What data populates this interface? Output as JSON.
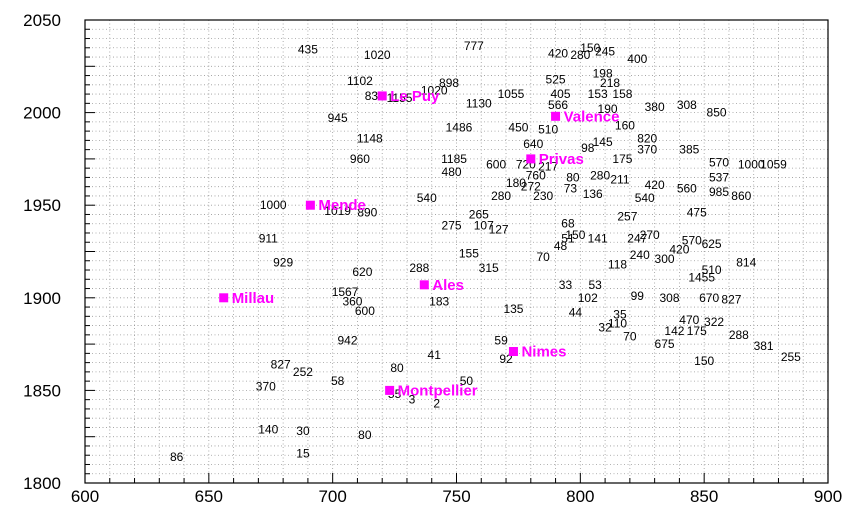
{
  "chart_data": {
    "type": "scatter",
    "title": "",
    "xlabel": "",
    "ylabel": "",
    "xlim": [
      600,
      900
    ],
    "ylim": [
      1800,
      2050
    ],
    "x_ticks": [
      600,
      650,
      700,
      750,
      800,
      850,
      900
    ],
    "y_ticks": [
      1800,
      1850,
      1900,
      1950,
      2000,
      2050
    ],
    "grid": true,
    "marker_color": "#ff00ff",
    "cities": [
      {
        "name": "Le Puy",
        "x": 720,
        "y": 2009
      },
      {
        "name": "Valence",
        "x": 790,
        "y": 1998
      },
      {
        "name": "Privas",
        "x": 780,
        "y": 1975
      },
      {
        "name": "Mende",
        "x": 691,
        "y": 1950
      },
      {
        "name": "Ales",
        "x": 737,
        "y": 1907
      },
      {
        "name": "Millau",
        "x": 656,
        "y": 1900
      },
      {
        "name": "Nimes",
        "x": 773,
        "y": 1871
      },
      {
        "name": "Montpellier",
        "x": 723,
        "y": 1850
      }
    ],
    "points": [
      {
        "label": "435",
        "x": 690,
        "y": 2034
      },
      {
        "label": "1020",
        "x": 718,
        "y": 2031
      },
      {
        "label": "777",
        "x": 757,
        "y": 2036
      },
      {
        "label": "420",
        "x": 791,
        "y": 2032
      },
      {
        "label": "150",
        "x": 804,
        "y": 2035
      },
      {
        "label": "280",
        "x": 800,
        "y": 2031
      },
      {
        "label": "245",
        "x": 810,
        "y": 2033
      },
      {
        "label": "400",
        "x": 823,
        "y": 2029
      },
      {
        "label": "198",
        "x": 809,
        "y": 2021
      },
      {
        "label": "525",
        "x": 790,
        "y": 2018
      },
      {
        "label": "218",
        "x": 812,
        "y": 2016
      },
      {
        "label": "1102",
        "x": 711,
        "y": 2017
      },
      {
        "label": "898",
        "x": 747,
        "y": 2016
      },
      {
        "label": "1020",
        "x": 741,
        "y": 2012
      },
      {
        "label": "835",
        "x": 717,
        "y": 2009
      },
      {
        "label": "1155",
        "x": 727,
        "y": 2008
      },
      {
        "label": "1055",
        "x": 772,
        "y": 2010
      },
      {
        "label": "405",
        "x": 792,
        "y": 2010
      },
      {
        "label": "153",
        "x": 807,
        "y": 2010
      },
      {
        "label": "158",
        "x": 817,
        "y": 2010
      },
      {
        "label": "1130",
        "x": 759,
        "y": 2005
      },
      {
        "label": "566",
        "x": 791,
        "y": 2004
      },
      {
        "label": "190",
        "x": 811,
        "y": 2002
      },
      {
        "label": "380",
        "x": 830,
        "y": 2003
      },
      {
        "label": "308",
        "x": 843,
        "y": 2004
      },
      {
        "label": "850",
        "x": 855,
        "y": 2000
      },
      {
        "label": "945",
        "x": 702,
        "y": 1997
      },
      {
        "label": "1486",
        "x": 751,
        "y": 1992
      },
      {
        "label": "450",
        "x": 775,
        "y": 1992
      },
      {
        "label": "510",
        "x": 787,
        "y": 1991
      },
      {
        "label": "160",
        "x": 818,
        "y": 1993
      },
      {
        "label": "820",
        "x": 827,
        "y": 1986
      },
      {
        "label": "1148",
        "x": 715,
        "y": 1986
      },
      {
        "label": "640",
        "x": 781,
        "y": 1983
      },
      {
        "label": "145",
        "x": 809,
        "y": 1984
      },
      {
        "label": "98",
        "x": 803,
        "y": 1981
      },
      {
        "label": "370",
        "x": 827,
        "y": 1980
      },
      {
        "label": "385",
        "x": 844,
        "y": 1980
      },
      {
        "label": "960",
        "x": 711,
        "y": 1975
      },
      {
        "label": "1185",
        "x": 749,
        "y": 1975
      },
      {
        "label": "600",
        "x": 766,
        "y": 1972
      },
      {
        "label": "720",
        "x": 778,
        "y": 1972
      },
      {
        "label": "217",
        "x": 787,
        "y": 1971
      },
      {
        "label": "175",
        "x": 817,
        "y": 1975
      },
      {
        "label": "570",
        "x": 856,
        "y": 1973
      },
      {
        "label": "1000",
        "x": 869,
        "y": 1972
      },
      {
        "label": "1059",
        "x": 878,
        "y": 1972
      },
      {
        "label": "480",
        "x": 748,
        "y": 1968
      },
      {
        "label": "760",
        "x": 782,
        "y": 1966
      },
      {
        "label": "80",
        "x": 797,
        "y": 1965
      },
      {
        "label": "280",
        "x": 808,
        "y": 1966
      },
      {
        "label": "211",
        "x": 816,
        "y": 1964
      },
      {
        "label": "537",
        "x": 856,
        "y": 1965
      },
      {
        "label": "180",
        "x": 774,
        "y": 1962
      },
      {
        "label": "272",
        "x": 780,
        "y": 1960
      },
      {
        "label": "73",
        "x": 796,
        "y": 1959
      },
      {
        "label": "420",
        "x": 830,
        "y": 1961
      },
      {
        "label": "560",
        "x": 843,
        "y": 1959
      },
      {
        "label": "280",
        "x": 768,
        "y": 1955
      },
      {
        "label": "230",
        "x": 785,
        "y": 1955
      },
      {
        "label": "136",
        "x": 805,
        "y": 1956
      },
      {
        "label": "985",
        "x": 856,
        "y": 1957
      },
      {
        "label": "860",
        "x": 865,
        "y": 1955
      },
      {
        "label": "540",
        "x": 738,
        "y": 1954
      },
      {
        "label": "540",
        "x": 826,
        "y": 1954
      },
      {
        "label": "1000",
        "x": 676,
        "y": 1950
      },
      {
        "label": "1019",
        "x": 702,
        "y": 1947
      },
      {
        "label": "890",
        "x": 714,
        "y": 1946
      },
      {
        "label": "475",
        "x": 847,
        "y": 1946
      },
      {
        "label": "265",
        "x": 759,
        "y": 1945
      },
      {
        "label": "257",
        "x": 819,
        "y": 1944
      },
      {
        "label": "275",
        "x": 748,
        "y": 1939
      },
      {
        "label": "107",
        "x": 761,
        "y": 1939
      },
      {
        "label": "127",
        "x": 767,
        "y": 1937
      },
      {
        "label": "68",
        "x": 795,
        "y": 1940
      },
      {
        "label": "270",
        "x": 828,
        "y": 1934
      },
      {
        "label": "247",
        "x": 823,
        "y": 1932
      },
      {
        "label": "150",
        "x": 798,
        "y": 1934
      },
      {
        "label": "141",
        "x": 807,
        "y": 1932
      },
      {
        "label": "51",
        "x": 795,
        "y": 1932
      },
      {
        "label": "911",
        "x": 674,
        "y": 1932
      },
      {
        "label": "48",
        "x": 792,
        "y": 1928
      },
      {
        "label": "570",
        "x": 845,
        "y": 1931
      },
      {
        "label": "625",
        "x": 853,
        "y": 1929
      },
      {
        "label": "420",
        "x": 840,
        "y": 1926
      },
      {
        "label": "155",
        "x": 755,
        "y": 1924
      },
      {
        "label": "70",
        "x": 785,
        "y": 1922
      },
      {
        "label": "240",
        "x": 824,
        "y": 1923
      },
      {
        "label": "300",
        "x": 834,
        "y": 1921
      },
      {
        "label": "929",
        "x": 680,
        "y": 1919
      },
      {
        "label": "288",
        "x": 735,
        "y": 1916
      },
      {
        "label": "315",
        "x": 763,
        "y": 1916
      },
      {
        "label": "118",
        "x": 815,
        "y": 1918
      },
      {
        "label": "814",
        "x": 867,
        "y": 1919
      },
      {
        "label": "620",
        "x": 712,
        "y": 1914
      },
      {
        "label": "510",
        "x": 853,
        "y": 1915
      },
      {
        "label": "1455",
        "x": 849,
        "y": 1911
      },
      {
        "label": "33",
        "x": 794,
        "y": 1907
      },
      {
        "label": "53",
        "x": 806,
        "y": 1907
      },
      {
        "label": "1567",
        "x": 705,
        "y": 1903
      },
      {
        "label": "99",
        "x": 823,
        "y": 1901
      },
      {
        "label": "308",
        "x": 836,
        "y": 1900
      },
      {
        "label": "102",
        "x": 803,
        "y": 1900
      },
      {
        "label": "670",
        "x": 852,
        "y": 1900
      },
      {
        "label": "827",
        "x": 861,
        "y": 1899
      },
      {
        "label": "360",
        "x": 708,
        "y": 1898
      },
      {
        "label": "183",
        "x": 743,
        "y": 1898
      },
      {
        "label": "600",
        "x": 713,
        "y": 1893
      },
      {
        "label": "135",
        "x": 773,
        "y": 1894
      },
      {
        "label": "44",
        "x": 798,
        "y": 1892
      },
      {
        "label": "35",
        "x": 816,
        "y": 1891
      },
      {
        "label": "470",
        "x": 844,
        "y": 1888
      },
      {
        "label": "322",
        "x": 854,
        "y": 1887
      },
      {
        "label": "110",
        "x": 815,
        "y": 1886
      },
      {
        "label": "32",
        "x": 810,
        "y": 1884
      },
      {
        "label": "142",
        "x": 838,
        "y": 1882
      },
      {
        "label": "175",
        "x": 847,
        "y": 1882
      },
      {
        "label": "288",
        "x": 864,
        "y": 1880
      },
      {
        "label": "70",
        "x": 820,
        "y": 1879
      },
      {
        "label": "942",
        "x": 706,
        "y": 1877
      },
      {
        "label": "59",
        "x": 768,
        "y": 1877
      },
      {
        "label": "675",
        "x": 834,
        "y": 1875
      },
      {
        "label": "381",
        "x": 874,
        "y": 1874
      },
      {
        "label": "41",
        "x": 741,
        "y": 1869
      },
      {
        "label": "92",
        "x": 770,
        "y": 1867
      },
      {
        "label": "255",
        "x": 885,
        "y": 1868
      },
      {
        "label": "150",
        "x": 850,
        "y": 1866
      },
      {
        "label": "827",
        "x": 679,
        "y": 1864
      },
      {
        "label": "80",
        "x": 726,
        "y": 1862
      },
      {
        "label": "252",
        "x": 688,
        "y": 1860
      },
      {
        "label": "58",
        "x": 702,
        "y": 1855
      },
      {
        "label": "370",
        "x": 673,
        "y": 1852
      },
      {
        "label": "50",
        "x": 754,
        "y": 1855
      },
      {
        "label": "55",
        "x": 725,
        "y": 1848
      },
      {
        "label": "3",
        "x": 732,
        "y": 1845
      },
      {
        "label": "2",
        "x": 742,
        "y": 1843
      },
      {
        "label": "140",
        "x": 674,
        "y": 1829
      },
      {
        "label": "30",
        "x": 688,
        "y": 1828
      },
      {
        "label": "80",
        "x": 713,
        "y": 1826
      },
      {
        "label": "15",
        "x": 688,
        "y": 1816
      },
      {
        "label": "86",
        "x": 637,
        "y": 1814
      }
    ]
  }
}
